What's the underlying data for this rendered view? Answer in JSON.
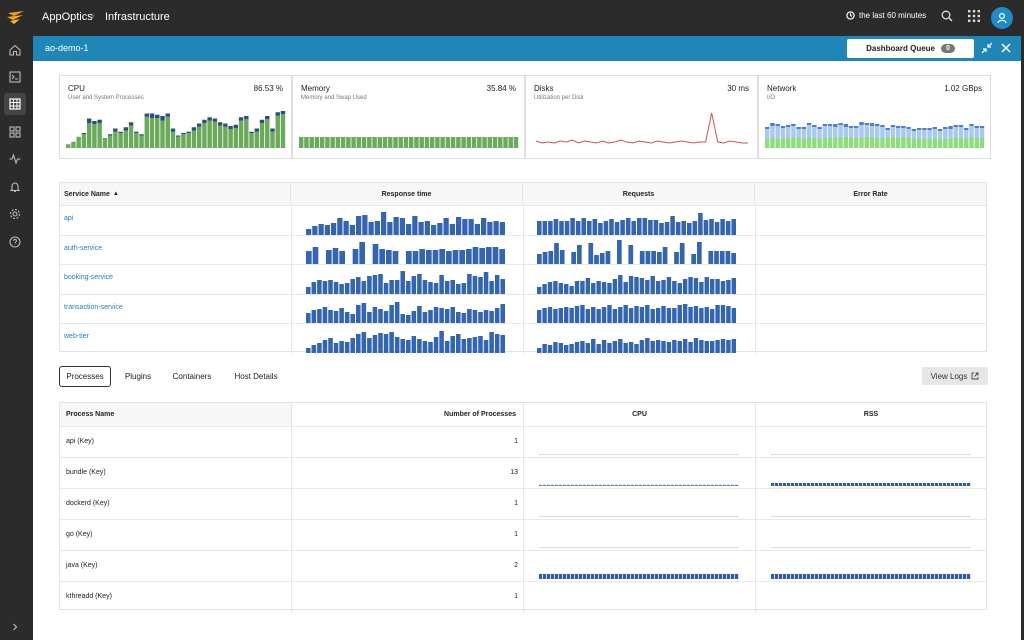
{
  "topbar": {
    "app_name": "AppOptics",
    "breadcrumb_separator": "›",
    "breadcrumb_current": "Infrastructure",
    "time_range": "the last 60 minutes",
    "avatar_icon": "user-icon"
  },
  "sidebar": {
    "icons": [
      "home-icon",
      "terminal-icon",
      "grid-table-icon",
      "dashboards-icon",
      "pulse-icon",
      "bell-icon",
      "gear-icon",
      "help-icon",
      "expand-chevron-icon"
    ],
    "active_index": 2
  },
  "dashboard": {
    "title": "ao-demo-1",
    "queue_label": "Dashboard Queue",
    "queue_count": "0"
  },
  "cards": [
    {
      "title": "CPU",
      "value": "86.53 %",
      "subtitle": "User and System Processes",
      "color": "#6aaa5a",
      "cap_color": "#2f4f7a"
    },
    {
      "title": "Memory",
      "value": "35.84 %",
      "subtitle": "Memory and Swap Used",
      "color": "#6aaa5a"
    },
    {
      "title": "Disks",
      "value": "30 ms",
      "subtitle": "Utilization per Disk",
      "color": "#d0505a"
    },
    {
      "title": "Network",
      "value": "1.02 GBps",
      "subtitle": "I/O",
      "colors": [
        "#8fdc7f",
        "#a9c9ef",
        "#4f7fc8"
      ]
    }
  ],
  "chart_data": [
    {
      "type": "bar",
      "name": "cpu",
      "values": [
        3,
        5,
        9,
        11,
        20,
        19,
        20,
        8,
        10,
        13,
        12,
        14,
        18,
        12,
        10,
        25,
        24,
        24,
        22,
        25,
        13,
        9,
        11,
        12,
        14,
        17,
        20,
        22,
        21,
        18,
        17,
        15,
        16,
        22,
        23,
        12,
        13,
        20,
        23,
        13,
        26,
        27
      ],
      "cap": [
        0,
        0,
        0,
        1,
        2,
        1,
        1,
        0,
        1,
        1,
        1,
        1,
        1,
        1,
        1,
        1,
        2,
        1,
        2,
        1,
        1,
        1,
        1,
        1,
        1,
        1,
        1,
        1,
        1,
        1,
        1,
        1,
        1,
        1,
        1,
        1,
        1,
        1,
        1,
        1,
        1,
        1
      ]
    },
    {
      "type": "bar",
      "name": "memory",
      "values": [
        11,
        11,
        11,
        11,
        11,
        11,
        11,
        11,
        11,
        11,
        11,
        11,
        11,
        11,
        11,
        11,
        11,
        11,
        11,
        11,
        11,
        11,
        11,
        11,
        11,
        11,
        11,
        11,
        11,
        11,
        11,
        11,
        11,
        11,
        11,
        11,
        11,
        11,
        11,
        11,
        11,
        11
      ]
    },
    {
      "type": "line",
      "name": "disks",
      "values": [
        5,
        3,
        4,
        3,
        5,
        4,
        6,
        3,
        5,
        4,
        3,
        5,
        3,
        4,
        6,
        4,
        3,
        5,
        4,
        3,
        5,
        4,
        3,
        4,
        5,
        4,
        3,
        4,
        4,
        33,
        4,
        3,
        5,
        4,
        3,
        3
      ]
    },
    {
      "type": "bar",
      "name": "network",
      "series": [
        {
          "values": [
            9,
            10,
            9,
            9,
            10,
            10,
            10,
            9,
            11,
            10,
            9,
            10,
            10,
            10,
            11,
            11,
            10,
            10,
            10,
            11,
            11,
            10,
            10,
            10,
            11,
            10,
            11,
            10,
            9,
            10,
            9,
            9,
            10,
            9,
            9,
            9,
            10,
            10,
            9,
            11,
            10,
            10
          ]
        },
        {
          "values": [
            10,
            12,
            13,
            11,
            11,
            12,
            9,
            10,
            12,
            11,
            10,
            12,
            12,
            11,
            12,
            10,
            10,
            10,
            13,
            12,
            11,
            12,
            11,
            8,
            10,
            10,
            9,
            9,
            8,
            8,
            9,
            9,
            9,
            8,
            10,
            10,
            11,
            11,
            9,
            11,
            10,
            10
          ]
        },
        {
          "values": [
            2,
            3,
            2,
            2,
            2,
            2,
            2,
            2,
            2,
            2,
            2,
            2,
            2,
            3,
            2,
            3,
            2,
            2,
            3,
            2,
            3,
            2,
            2,
            2,
            2,
            2,
            2,
            2,
            2,
            2,
            2,
            2,
            2,
            2,
            2,
            3,
            2,
            2,
            2,
            2,
            2,
            2
          ]
        }
      ]
    }
  ],
  "services": {
    "headers": {
      "name": "Service Name",
      "sort_indicator": "▲",
      "response": "Response time",
      "requests": "Requests",
      "error": "Error Rate"
    },
    "rows": [
      {
        "name": "api",
        "response": [
          6,
          9,
          11,
          10,
          12,
          17,
          14,
          10,
          19,
          20,
          13,
          14,
          23,
          13,
          18,
          17,
          11,
          19,
          13,
          14,
          10,
          12,
          17,
          11,
          18,
          16,
          16,
          11,
          17,
          13,
          14,
          13
        ],
        "requests": [
          14,
          14,
          14,
          16,
          14,
          14,
          17,
          14,
          17,
          14,
          16,
          12,
          14,
          16,
          13,
          15,
          17,
          14,
          17,
          17,
          15,
          15,
          12,
          13,
          19,
          13,
          14,
          12,
          14,
          22,
          15,
          16,
          13,
          16,
          14,
          16
        ]
      },
      {
        "name": "auth-service",
        "response": [
          14,
          18,
          0,
          15,
          17,
          14,
          0,
          16,
          23,
          0,
          21,
          16,
          15,
          14,
          0,
          14,
          14,
          16,
          15,
          15,
          16,
          14,
          15,
          15,
          16,
          18,
          17,
          18,
          18,
          16
        ],
        "requests": [
          11,
          13,
          14,
          22,
          15,
          0,
          13,
          20,
          0,
          22,
          10,
          12,
          14,
          0,
          25,
          0,
          20,
          0,
          14,
          14,
          14,
          13,
          18,
          0,
          13,
          22,
          0,
          11,
          23,
          0,
          14,
          14,
          14,
          14,
          12
        ]
      },
      {
        "name": "booking-service",
        "response": [
          7,
          12,
          14,
          13,
          14,
          12,
          10,
          11,
          15,
          17,
          13,
          18,
          19,
          20,
          11,
          14,
          14,
          23,
          13,
          18,
          20,
          14,
          12,
          11,
          19,
          13,
          14,
          10,
          11,
          20,
          18,
          17,
          22,
          13,
          19,
          15
        ],
        "requests": [
          7,
          10,
          12,
          13,
          11,
          10,
          8,
          13,
          13,
          16,
          11,
          13,
          12,
          11,
          15,
          19,
          12,
          18,
          17,
          16,
          14,
          18,
          13,
          14,
          17,
          13,
          11,
          15,
          17,
          16,
          12,
          17,
          15,
          15,
          13,
          14,
          16
        ]
      },
      {
        "name": "transaction-service",
        "response": [
          11,
          14,
          15,
          17,
          14,
          13,
          16,
          12,
          10,
          19,
          21,
          12,
          17,
          15,
          13,
          19,
          22,
          10,
          9,
          13,
          18,
          12,
          14,
          17,
          16,
          15,
          17,
          12,
          11,
          15,
          14,
          12,
          14,
          13,
          16,
          20
        ],
        "requests": [
          14,
          16,
          17,
          15,
          16,
          17,
          16,
          18,
          19,
          15,
          17,
          15,
          17,
          19,
          15,
          17,
          19,
          16,
          18,
          17,
          19,
          15,
          16,
          18,
          16,
          16,
          19,
          20,
          17,
          18,
          16,
          17,
          15,
          19,
          19,
          18,
          16
        ]
      },
      {
        "name": "web-tier",
        "response": [
          5,
          8,
          10,
          13,
          15,
          10,
          12,
          11,
          15,
          19,
          21,
          15,
          18,
          20,
          19,
          21,
          16,
          14,
          13,
          17,
          14,
          12,
          11,
          16,
          22,
          12,
          17,
          19,
          14,
          15,
          16,
          17,
          13,
          21,
          19,
          18
        ],
        "requests": [
          5,
          9,
          8,
          11,
          10,
          8,
          9,
          11,
          12,
          10,
          14,
          9,
          13,
          10,
          12,
          14,
          10,
          11,
          9,
          13,
          15,
          12,
          13,
          12,
          11,
          13,
          12,
          14,
          11,
          15,
          13,
          12,
          12,
          13,
          14,
          13,
          14
        ]
      }
    ]
  },
  "tabs": [
    "Processes",
    "Plugins",
    "Containers",
    "Host Details"
  ],
  "view_logs": "View Logs",
  "processes": {
    "headers": {
      "name": "Process Name",
      "count": "Number of Processes",
      "cpu": "CPU",
      "rss": "RSS"
    },
    "rows": [
      {
        "name": "api (Key)",
        "count": "1",
        "cpu": "baseline",
        "rss": "baseline"
      },
      {
        "name": "bundle (Key)",
        "count": "13",
        "cpu": "low",
        "rss": "low-bar"
      },
      {
        "name": "dockerd (Key)",
        "count": "1",
        "cpu": "baseline",
        "rss": "baseline"
      },
      {
        "name": "go (Key)",
        "count": "1",
        "cpu": "baseline",
        "rss": "baseline"
      },
      {
        "name": "java (Key)",
        "count": "2",
        "cpu": "bar",
        "rss": "bar"
      },
      {
        "name": "kthreadd (Key)",
        "count": "1",
        "cpu": "none",
        "rss": "none"
      }
    ]
  }
}
